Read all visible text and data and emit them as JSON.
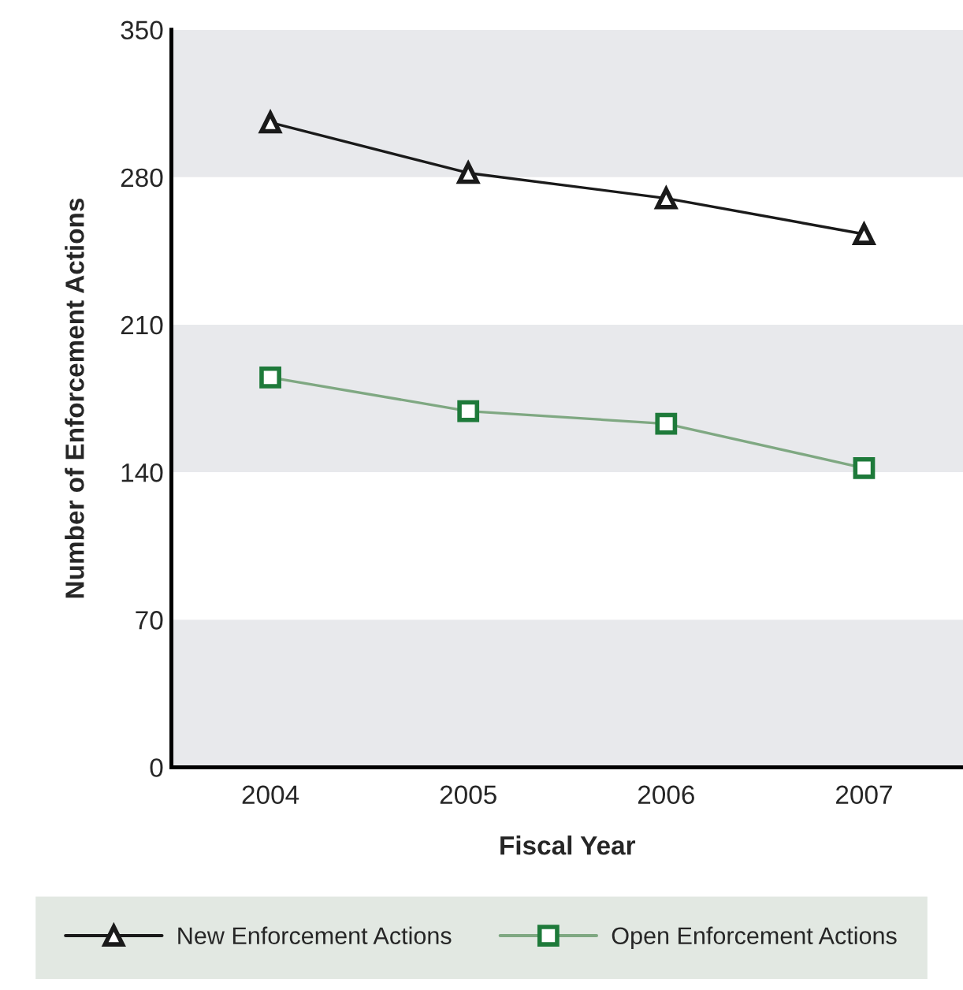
{
  "chart_data": {
    "type": "line",
    "xlabel": "Fiscal Year",
    "ylabel": "Number of Enforcement Actions",
    "categories": [
      "2004",
      "2005",
      "2006",
      "2007"
    ],
    "series": [
      {
        "name": "New Enforcement Actions",
        "color": "#1a1a1a",
        "marker": "triangle",
        "values": [
          306,
          282,
          270,
          253
        ]
      },
      {
        "name": "Open Enforcement Actions",
        "color": "#7fa882",
        "marker": "square",
        "values": [
          185,
          169,
          163,
          142
        ]
      }
    ],
    "ylim": [
      0,
      350
    ],
    "yticks": [
      0,
      70,
      140,
      210,
      280,
      350
    ],
    "grid": false,
    "legend": "bottom",
    "bands": [
      {
        "axis": "y",
        "from": 0,
        "to": 70,
        "color": "#e8e9ec"
      },
      {
        "axis": "y",
        "from": 140,
        "to": 210,
        "color": "#e8e9ec"
      },
      {
        "axis": "y",
        "from": 280,
        "to": 350,
        "color": "#e8e9ec"
      }
    ]
  }
}
